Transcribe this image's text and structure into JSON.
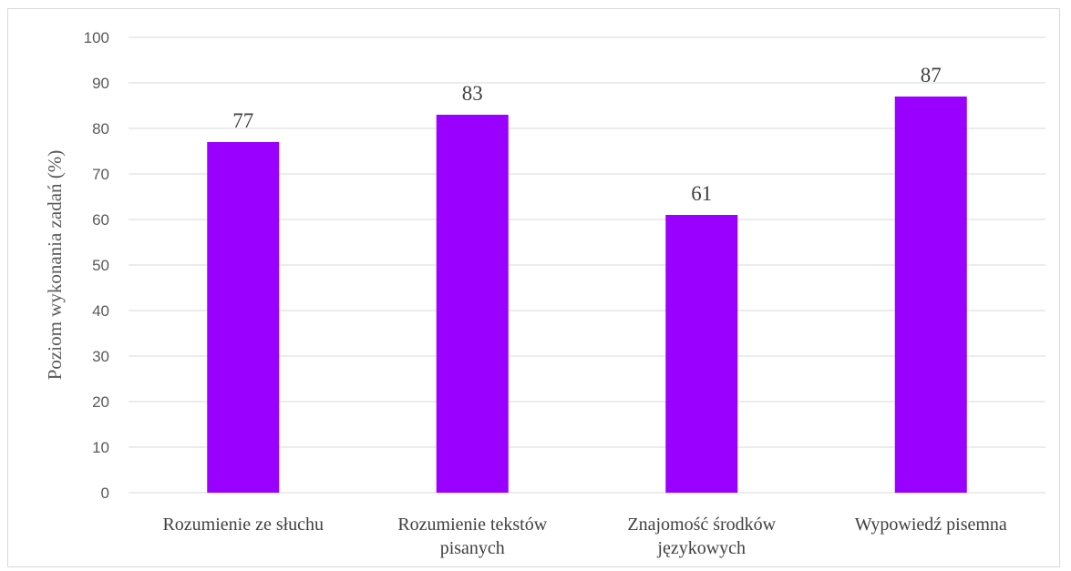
{
  "chart_data": {
    "type": "bar",
    "title": "",
    "xlabel": "",
    "ylabel": "Poziom wykonania zadań (%)",
    "categories": [
      [
        "Rozumienie ze słuchu"
      ],
      [
        "Rozumienie tekstów",
        "pisanych"
      ],
      [
        "Znajomość środków",
        "językowych"
      ],
      [
        "Wypowiedź pisemna"
      ]
    ],
    "values": [
      77,
      83,
      61,
      87
    ],
    "data_labels": [
      "77",
      "83",
      "61",
      "87"
    ],
    "ylim": [
      0,
      100
    ],
    "yticks": [
      0,
      10,
      20,
      30,
      40,
      50,
      60,
      70,
      80,
      90,
      100
    ],
    "grid": true,
    "legend": "none",
    "colors": {
      "bar": "#9900ff",
      "grid": "#d9d9d9",
      "axis_text": "#595959",
      "label_text": "#404040"
    }
  }
}
